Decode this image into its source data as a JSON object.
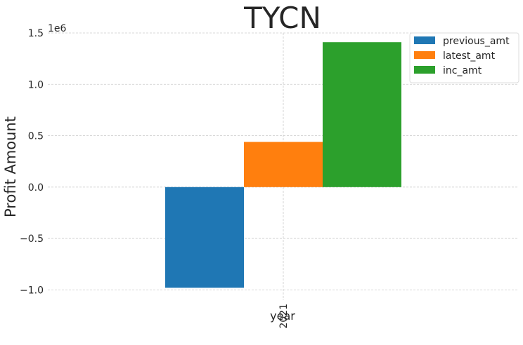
{
  "chart_data": {
    "type": "bar",
    "title": "TYCN",
    "xlabel": "year",
    "ylabel": "Profit Amount",
    "y_scale_label": "1e6",
    "categories": [
      "2021"
    ],
    "series": [
      {
        "name": "previous_amt",
        "color": "#1f77b4",
        "values": [
          -980000
        ]
      },
      {
        "name": "latest_amt",
        "color": "#ff7f0e",
        "values": [
          440000
        ]
      },
      {
        "name": "inc_amt",
        "color": "#2ca02c",
        "values": [
          1410000
        ]
      }
    ],
    "ylim": [
      -1100000,
      1500000
    ],
    "y_ticks": [
      -1000000,
      -500000,
      0,
      500000,
      1000000,
      1500000
    ],
    "y_tick_labels": [
      "−1.0",
      "−0.5",
      "0.0",
      "0.5",
      "1.0",
      "1.5"
    ],
    "grid": true,
    "legend_position": "top-right"
  }
}
